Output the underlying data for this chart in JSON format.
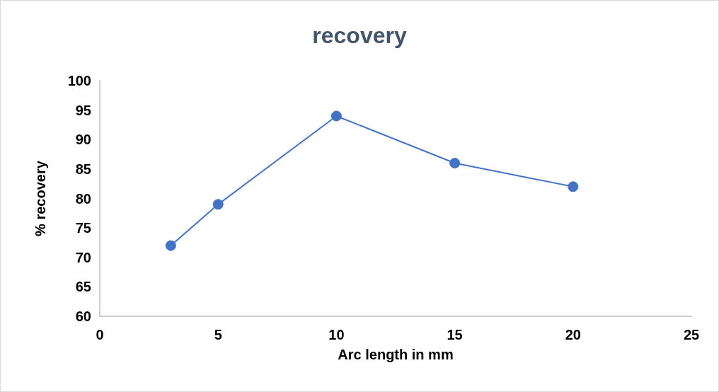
{
  "chart_data": {
    "type": "line",
    "title": "recovery",
    "xlabel": "Arc length in mm",
    "ylabel": "% recovery",
    "x": [
      3,
      5,
      10,
      15,
      20
    ],
    "series": [
      {
        "color": "#4472c4",
        "values": [
          72,
          79,
          94,
          86,
          82
        ]
      }
    ],
    "xlim": [
      0,
      25
    ],
    "xticks": [
      0,
      5,
      10,
      15,
      20,
      25
    ],
    "ylim": [
      60,
      100
    ],
    "yticks": [
      60,
      65,
      70,
      75,
      80,
      85,
      90,
      95,
      100
    ],
    "grid": false,
    "marker": "circle",
    "line_style": "solid"
  }
}
